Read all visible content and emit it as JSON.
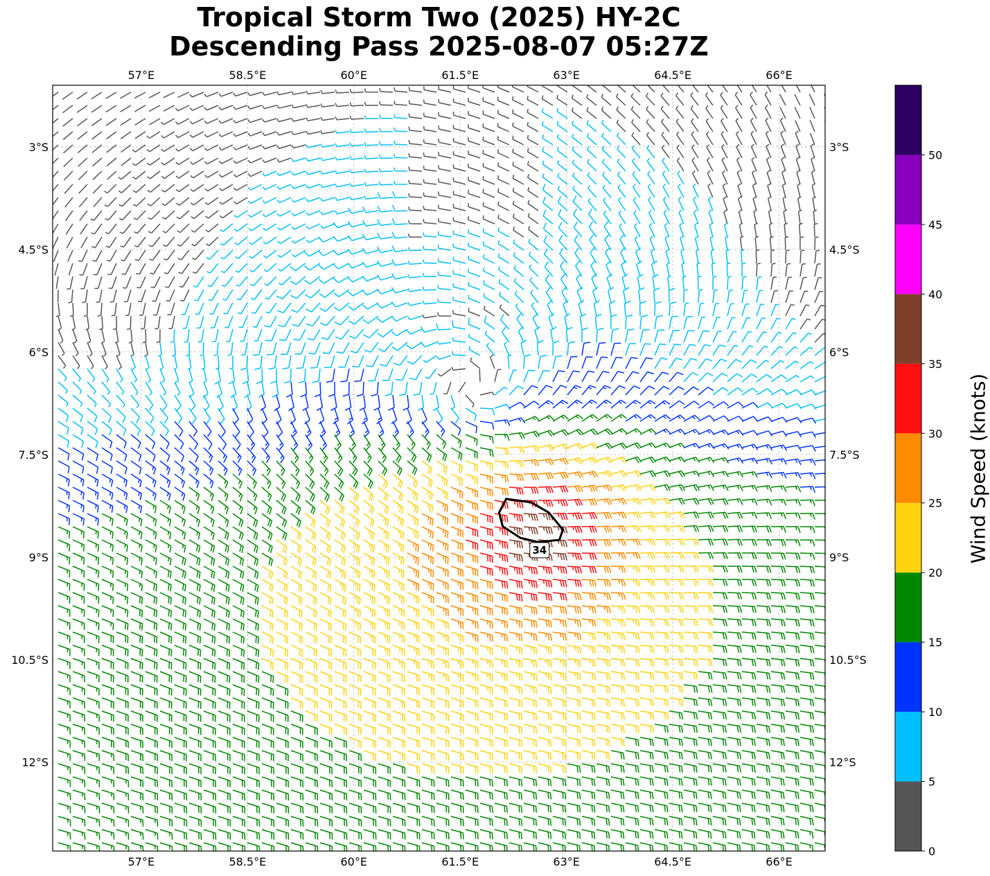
{
  "title": {
    "line1": "Tropical Storm Two (2025) HY-2C",
    "line2": "Descending Pass 2025-08-07 05:27Z"
  },
  "map": {
    "lon_range": [
      55.75,
      66.65
    ],
    "lat_range": [
      -13.3,
      -2.1
    ],
    "x_ticks": [
      {
        "value": 57,
        "label": "57°E"
      },
      {
        "value": 58.5,
        "label": "58.5°E"
      },
      {
        "value": 60,
        "label": "60°E"
      },
      {
        "value": 61.5,
        "label": "61.5°E"
      },
      {
        "value": 63,
        "label": "63°E"
      },
      {
        "value": 64.5,
        "label": "64.5°E"
      },
      {
        "value": 66,
        "label": "66°E"
      }
    ],
    "y_ticks": [
      {
        "value": -3,
        "label": "3°S"
      },
      {
        "value": -4.5,
        "label": "4.5°S"
      },
      {
        "value": -6,
        "label": "6°S"
      },
      {
        "value": -7.5,
        "label": "7.5°S"
      },
      {
        "value": -9,
        "label": "9°S"
      },
      {
        "value": -10.5,
        "label": "10.5°S"
      },
      {
        "value": -12,
        "label": "12°S"
      }
    ],
    "gridlines": true,
    "storm_center": {
      "lon": 61.7,
      "lat": -6.85
    },
    "contour": {
      "level_label": "34",
      "level": 34,
      "points": [
        [
          62.15,
          -8.15
        ],
        [
          62.5,
          -8.2
        ],
        [
          62.75,
          -8.35
        ],
        [
          62.95,
          -8.6
        ],
        [
          62.9,
          -8.75
        ],
        [
          62.6,
          -8.78
        ],
        [
          62.35,
          -8.72
        ],
        [
          62.1,
          -8.55
        ],
        [
          62.05,
          -8.35
        ],
        [
          62.15,
          -8.15
        ]
      ],
      "label_position": {
        "lon": 62.62,
        "lat": -8.9
      }
    }
  },
  "colorbar": {
    "label": "Wind Speed (knots)",
    "min": 0,
    "max": 55,
    "bins": [
      {
        "from": 0,
        "to": 5,
        "color": "#555555"
      },
      {
        "from": 5,
        "to": 10,
        "color": "#00bfff"
      },
      {
        "from": 10,
        "to": 15,
        "color": "#0033ff"
      },
      {
        "from": 15,
        "to": 20,
        "color": "#008800"
      },
      {
        "from": 20,
        "to": 25,
        "color": "#ffd310"
      },
      {
        "from": 25,
        "to": 30,
        "color": "#ff8c00"
      },
      {
        "from": 30,
        "to": 35,
        "color": "#ff1010"
      },
      {
        "from": 35,
        "to": 40,
        "color": "#7f3f2a"
      },
      {
        "from": 40,
        "to": 45,
        "color": "#ff00ff"
      },
      {
        "from": 45,
        "to": 50,
        "color": "#8800bb"
      },
      {
        "from": 50,
        "to": 55,
        "color": "#2a0060"
      }
    ],
    "ticks": [
      "0",
      "5",
      "10",
      "15",
      "20",
      "25",
      "30",
      "35",
      "40",
      "45",
      "50"
    ]
  }
}
